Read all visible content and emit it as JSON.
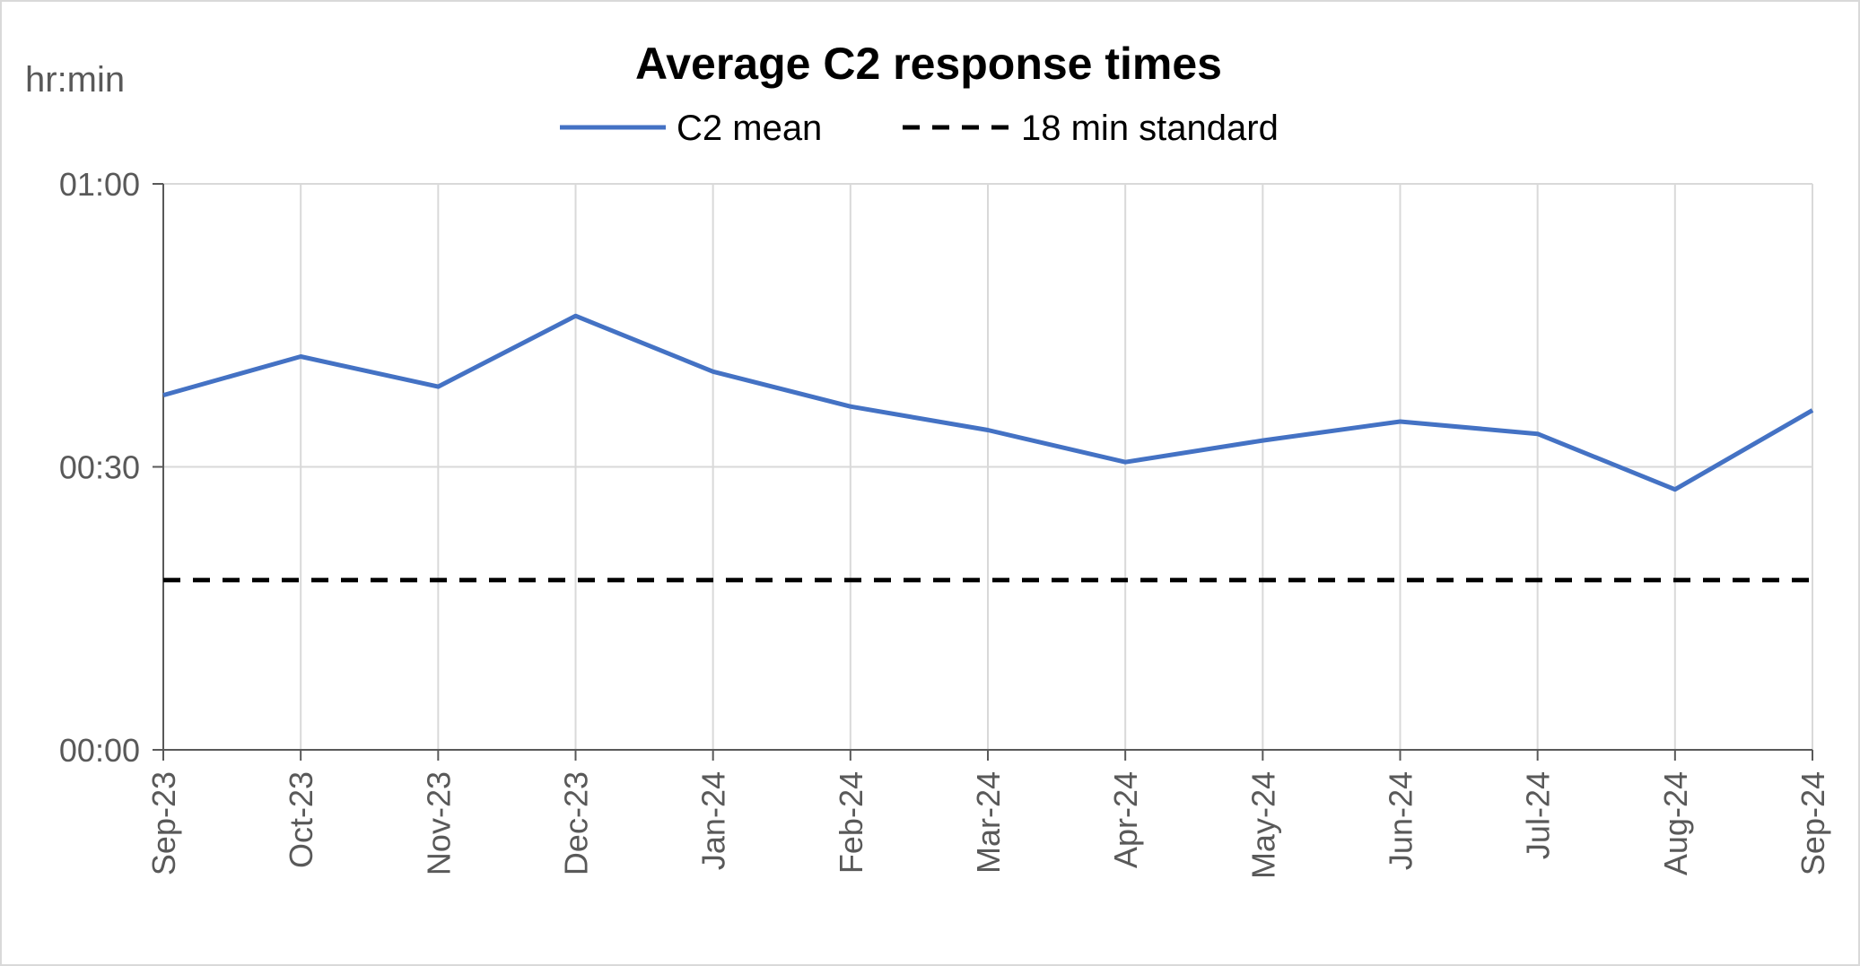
{
  "chart_data": {
    "type": "line",
    "title": "Average C2 response times",
    "unit_label": "hr:min",
    "xlabel": "",
    "ylabel": "",
    "categories": [
      "Sep-23",
      "Oct-23",
      "Nov-23",
      "Dec-23",
      "Jan-24",
      "Feb-24",
      "Mar-24",
      "Apr-24",
      "May-24",
      "Jun-24",
      "Jul-24",
      "Aug-24",
      "Sep-24"
    ],
    "y_tick_labels": [
      "00:00",
      "00:30",
      "01:00"
    ],
    "y_tick_values": [
      0,
      30,
      60
    ],
    "ylim": [
      0,
      60
    ],
    "y_units": "minutes",
    "grid": true,
    "legend_position": "top",
    "series": [
      {
        "name": "C2 mean",
        "style": "solid",
        "color": "#4472c4",
        "values": [
          37.6,
          41.7,
          38.5,
          46.0,
          40.1,
          36.4,
          33.9,
          30.5,
          32.8,
          34.8,
          33.5,
          27.6,
          36.0
        ]
      },
      {
        "name": "18 min standard",
        "style": "dashed",
        "color": "#000000",
        "values": [
          18,
          18,
          18,
          18,
          18,
          18,
          18,
          18,
          18,
          18,
          18,
          18,
          18
        ]
      }
    ]
  }
}
